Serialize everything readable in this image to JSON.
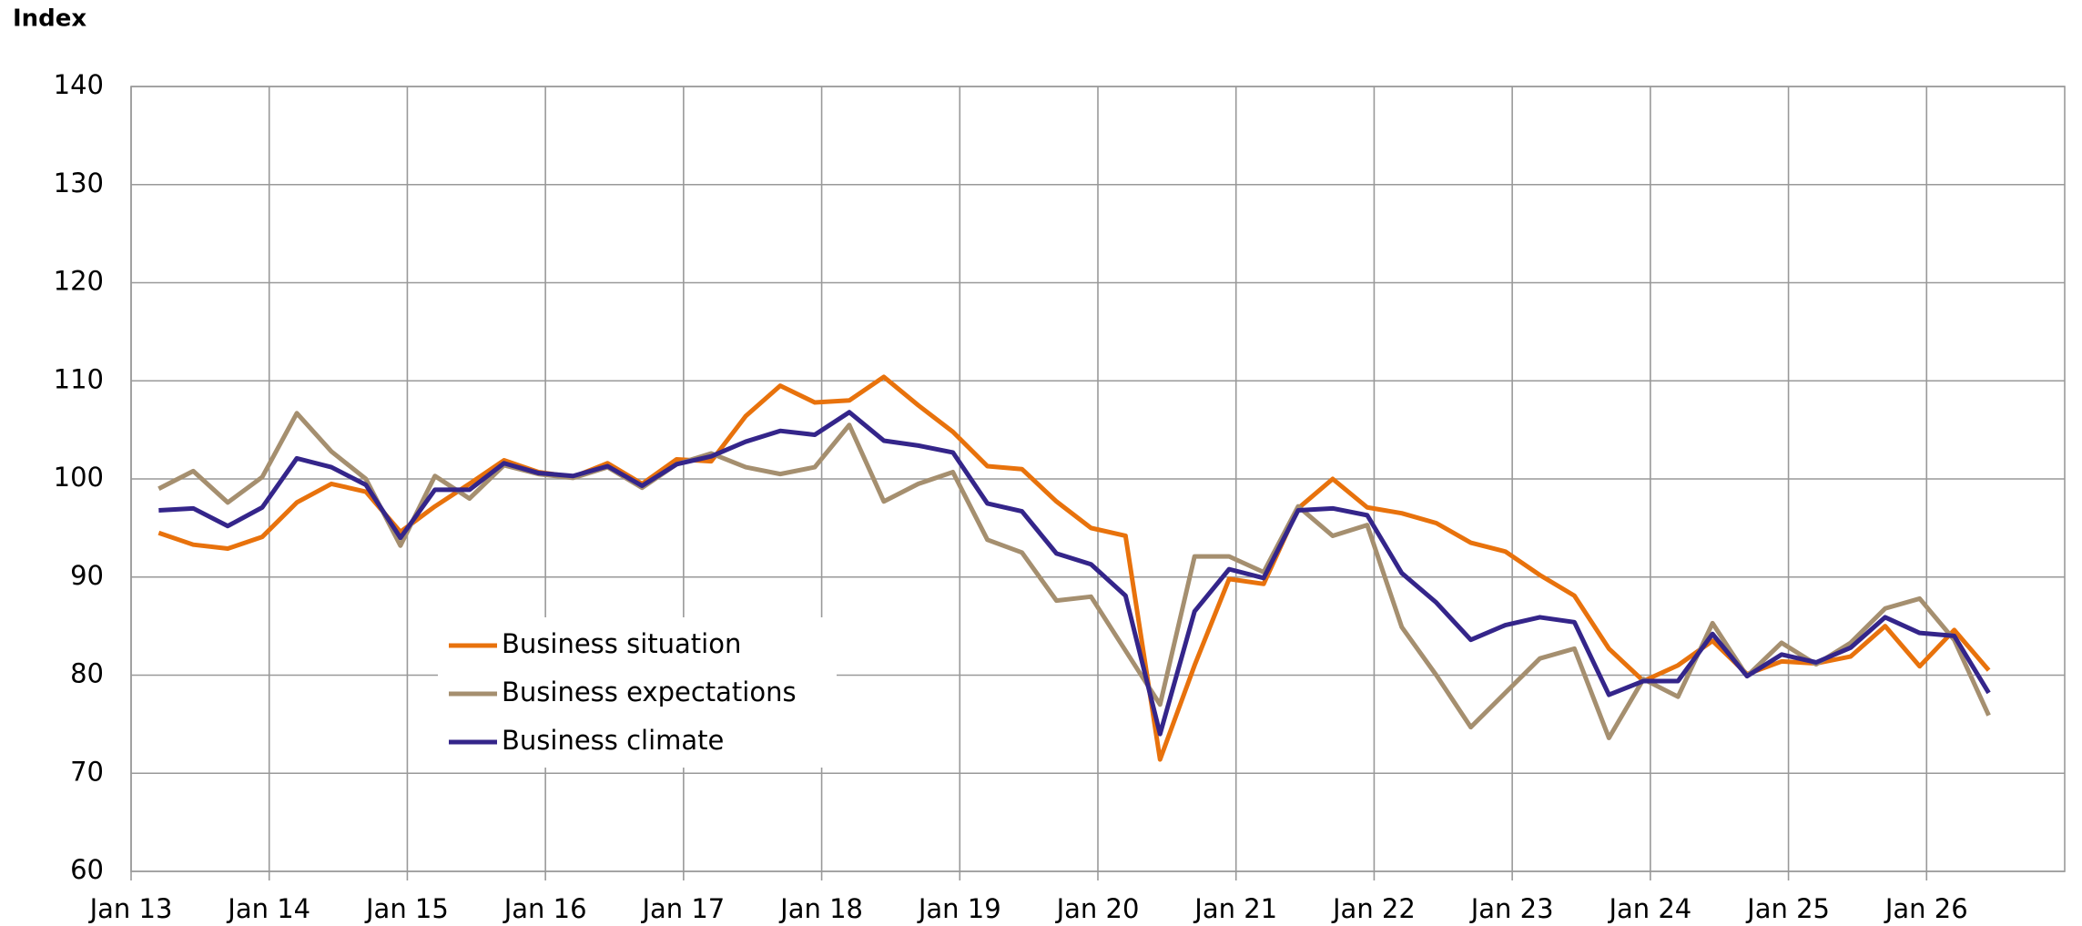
{
  "chart_data": {
    "type": "line",
    "y_label": "Index",
    "x": [
      2013.2,
      2013.45,
      2013.7,
      2013.95,
      2014.2,
      2014.45,
      2014.7,
      2014.95,
      2015.2,
      2015.45,
      2015.7,
      2015.95,
      2016.2,
      2016.45,
      2016.7,
      2016.95,
      2017.2,
      2017.45,
      2017.7,
      2017.95,
      2018.2,
      2018.45,
      2018.7,
      2018.95,
      2019.2,
      2019.45,
      2019.7,
      2019.95,
      2020.2,
      2020.45,
      2020.7,
      2020.95,
      2021.2,
      2021.45,
      2021.7,
      2021.95,
      2022.2,
      2022.45,
      2022.7,
      2022.95,
      2023.2,
      2023.45,
      2023.7,
      2023.95,
      2024.2,
      2024.45,
      2024.7,
      2024.95,
      2025.2,
      2025.45,
      2025.7,
      2025.95,
      2026.2,
      2026.45
    ],
    "series": [
      {
        "name": "Business situation",
        "color": "#e8720c",
        "values": [
          94.5,
          93.3,
          92.9,
          94.1,
          97.6,
          99.5,
          98.7,
          94.6,
          97.2,
          99.5,
          101.9,
          100.7,
          100.2,
          101.6,
          99.5,
          102.0,
          101.8,
          106.4,
          109.5,
          107.8,
          108.0,
          110.4,
          107.5,
          104.8,
          101.3,
          101.0,
          97.7,
          95.0,
          94.2,
          71.4,
          81.0,
          89.8,
          89.3,
          97.0,
          100.0,
          97.1,
          96.5,
          95.5,
          93.5,
          92.6,
          90.2,
          88.1,
          82.7,
          79.4,
          81.0,
          83.5,
          80.1,
          81.4,
          81.2,
          81.9,
          85.0,
          80.9,
          84.6,
          80.5
        ]
      },
      {
        "name": "Business expectations",
        "color": "#a58f6f",
        "values": [
          99.0,
          100.8,
          97.6,
          100.2,
          106.7,
          102.8,
          100.0,
          93.2,
          100.3,
          98.0,
          101.4,
          100.5,
          100.1,
          101.2,
          99.1,
          101.5,
          102.6,
          101.2,
          100.5,
          101.2,
          105.5,
          97.7,
          99.5,
          100.7,
          93.8,
          92.5,
          87.6,
          88.0,
          82.5,
          77.0,
          92.1,
          92.1,
          90.5,
          97.2,
          94.2,
          95.3,
          84.9,
          80.0,
          74.7,
          78.2,
          81.7,
          82.7,
          73.6,
          79.6,
          77.8,
          85.3,
          79.9,
          83.3,
          81.1,
          83.3,
          86.8,
          87.8,
          83.6,
          75.9
        ]
      },
      {
        "name": "Business climate",
        "color": "#34258a",
        "values": [
          96.8,
          97.0,
          95.2,
          97.1,
          102.1,
          101.2,
          99.4,
          94.0,
          98.9,
          98.9,
          101.6,
          100.6,
          100.3,
          101.3,
          99.3,
          101.5,
          102.3,
          103.8,
          104.9,
          104.5,
          106.8,
          103.9,
          103.4,
          102.7,
          97.5,
          96.7,
          92.4,
          91.3,
          88.1,
          74.0,
          86.5,
          90.8,
          89.9,
          96.8,
          97.0,
          96.3,
          90.4,
          87.4,
          83.6,
          85.1,
          85.9,
          85.4,
          78.0,
          79.4,
          79.4,
          84.2,
          79.9,
          82.1,
          81.3,
          82.8,
          85.9,
          84.3,
          84.0,
          78.2
        ]
      }
    ],
    "xlim": [
      2013,
      2027
    ],
    "xticks": [
      {
        "value": 2013,
        "label": "Jan 13"
      },
      {
        "value": 2014,
        "label": "Jan 14"
      },
      {
        "value": 2015,
        "label": "Jan 15"
      },
      {
        "value": 2016,
        "label": "Jan 16"
      },
      {
        "value": 2017,
        "label": "Jan 17"
      },
      {
        "value": 2018,
        "label": "Jan 18"
      },
      {
        "value": 2019,
        "label": "Jan 19"
      },
      {
        "value": 2020,
        "label": "Jan 20"
      },
      {
        "value": 2021,
        "label": "Jan 21"
      },
      {
        "value": 2022,
        "label": "Jan 22"
      },
      {
        "value": 2023,
        "label": "Jan 23"
      },
      {
        "value": 2024,
        "label": "Jan 24"
      },
      {
        "value": 2025,
        "label": "Jan 25"
      },
      {
        "value": 2026,
        "label": "Jan 26"
      }
    ],
    "ylim": [
      60,
      140
    ],
    "yticks": [
      60,
      70,
      80,
      90,
      100,
      110,
      120,
      130,
      140
    ],
    "grid": true
  }
}
